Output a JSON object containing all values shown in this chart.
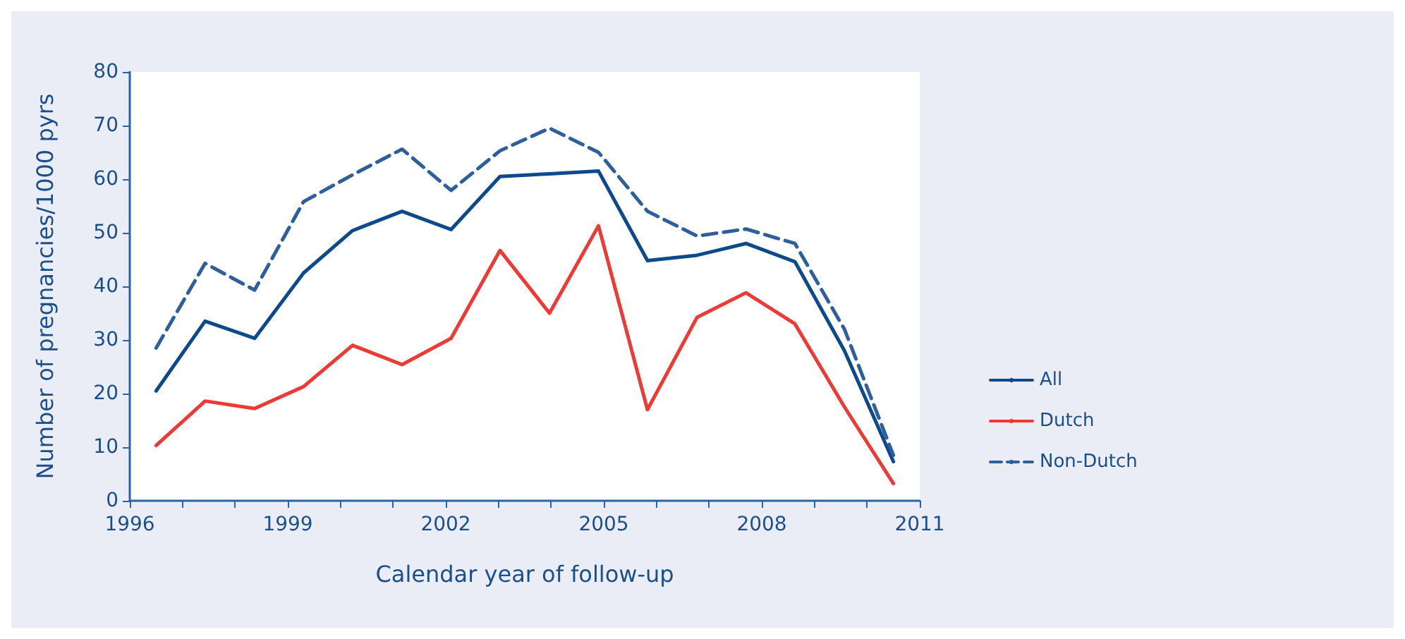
{
  "chart_data": {
    "type": "line",
    "xlabel": "Calendar year of follow-up",
    "ylabel": "Number of pregnancies/1000 pyrs",
    "x": [
      1996.5,
      1997.43,
      1998.37,
      1999.3,
      2000.23,
      2001.17,
      2002.1,
      2003.03,
      2003.97,
      2004.9,
      2005.83,
      2006.77,
      2007.7,
      2008.63,
      2009.57,
      2010.5
    ],
    "series": [
      {
        "name": "All",
        "color": "#0d4a8c",
        "values": [
          20.5,
          33.5,
          30.3,
          42.5,
          50.4,
          54,
          50.6,
          60.5,
          61,
          61.5,
          44.8,
          45.8,
          48,
          44.6,
          28,
          7.3
        ]
      },
      {
        "name": "Dutch",
        "color": "#ee3a34",
        "values": [
          10.3,
          18.6,
          17.2,
          21.3,
          29,
          25.4,
          30.3,
          46.7,
          35,
          51.3,
          17,
          34.2,
          38.8,
          33,
          17.5,
          3.2
        ]
      },
      {
        "name": "Non-Dutch",
        "color": "#2e5f9c",
        "line_style": "dashed",
        "values": [
          28.5,
          44.3,
          39.3,
          55.8,
          60.8,
          65.6,
          57.9,
          65.3,
          69.5,
          65,
          54,
          49.4,
          50.7,
          48,
          32,
          8.5
        ]
      }
    ],
    "xlim": [
      1996,
      2011
    ],
    "xticks": [
      1996,
      {
        "value": 1997,
        "label": null
      },
      {
        "value": 1998,
        "label": null
      },
      1999,
      {
        "value": 2000,
        "label": null
      },
      {
        "value": 2001,
        "label": null
      },
      2002,
      {
        "value": 2003,
        "label": null
      },
      {
        "value": 2004,
        "label": null
      },
      2005,
      {
        "value": 2006,
        "label": null
      },
      {
        "value": 2007,
        "label": null
      },
      2008,
      {
        "value": 2009,
        "label": null
      },
      {
        "value": 2010,
        "label": null
      },
      2011
    ],
    "ylim": [
      0,
      80
    ],
    "yticks": [
      0,
      10,
      20,
      30,
      40,
      50,
      60,
      70,
      80
    ],
    "grid": false,
    "legend": "right",
    "marker": "none",
    "line_style": "solid"
  }
}
